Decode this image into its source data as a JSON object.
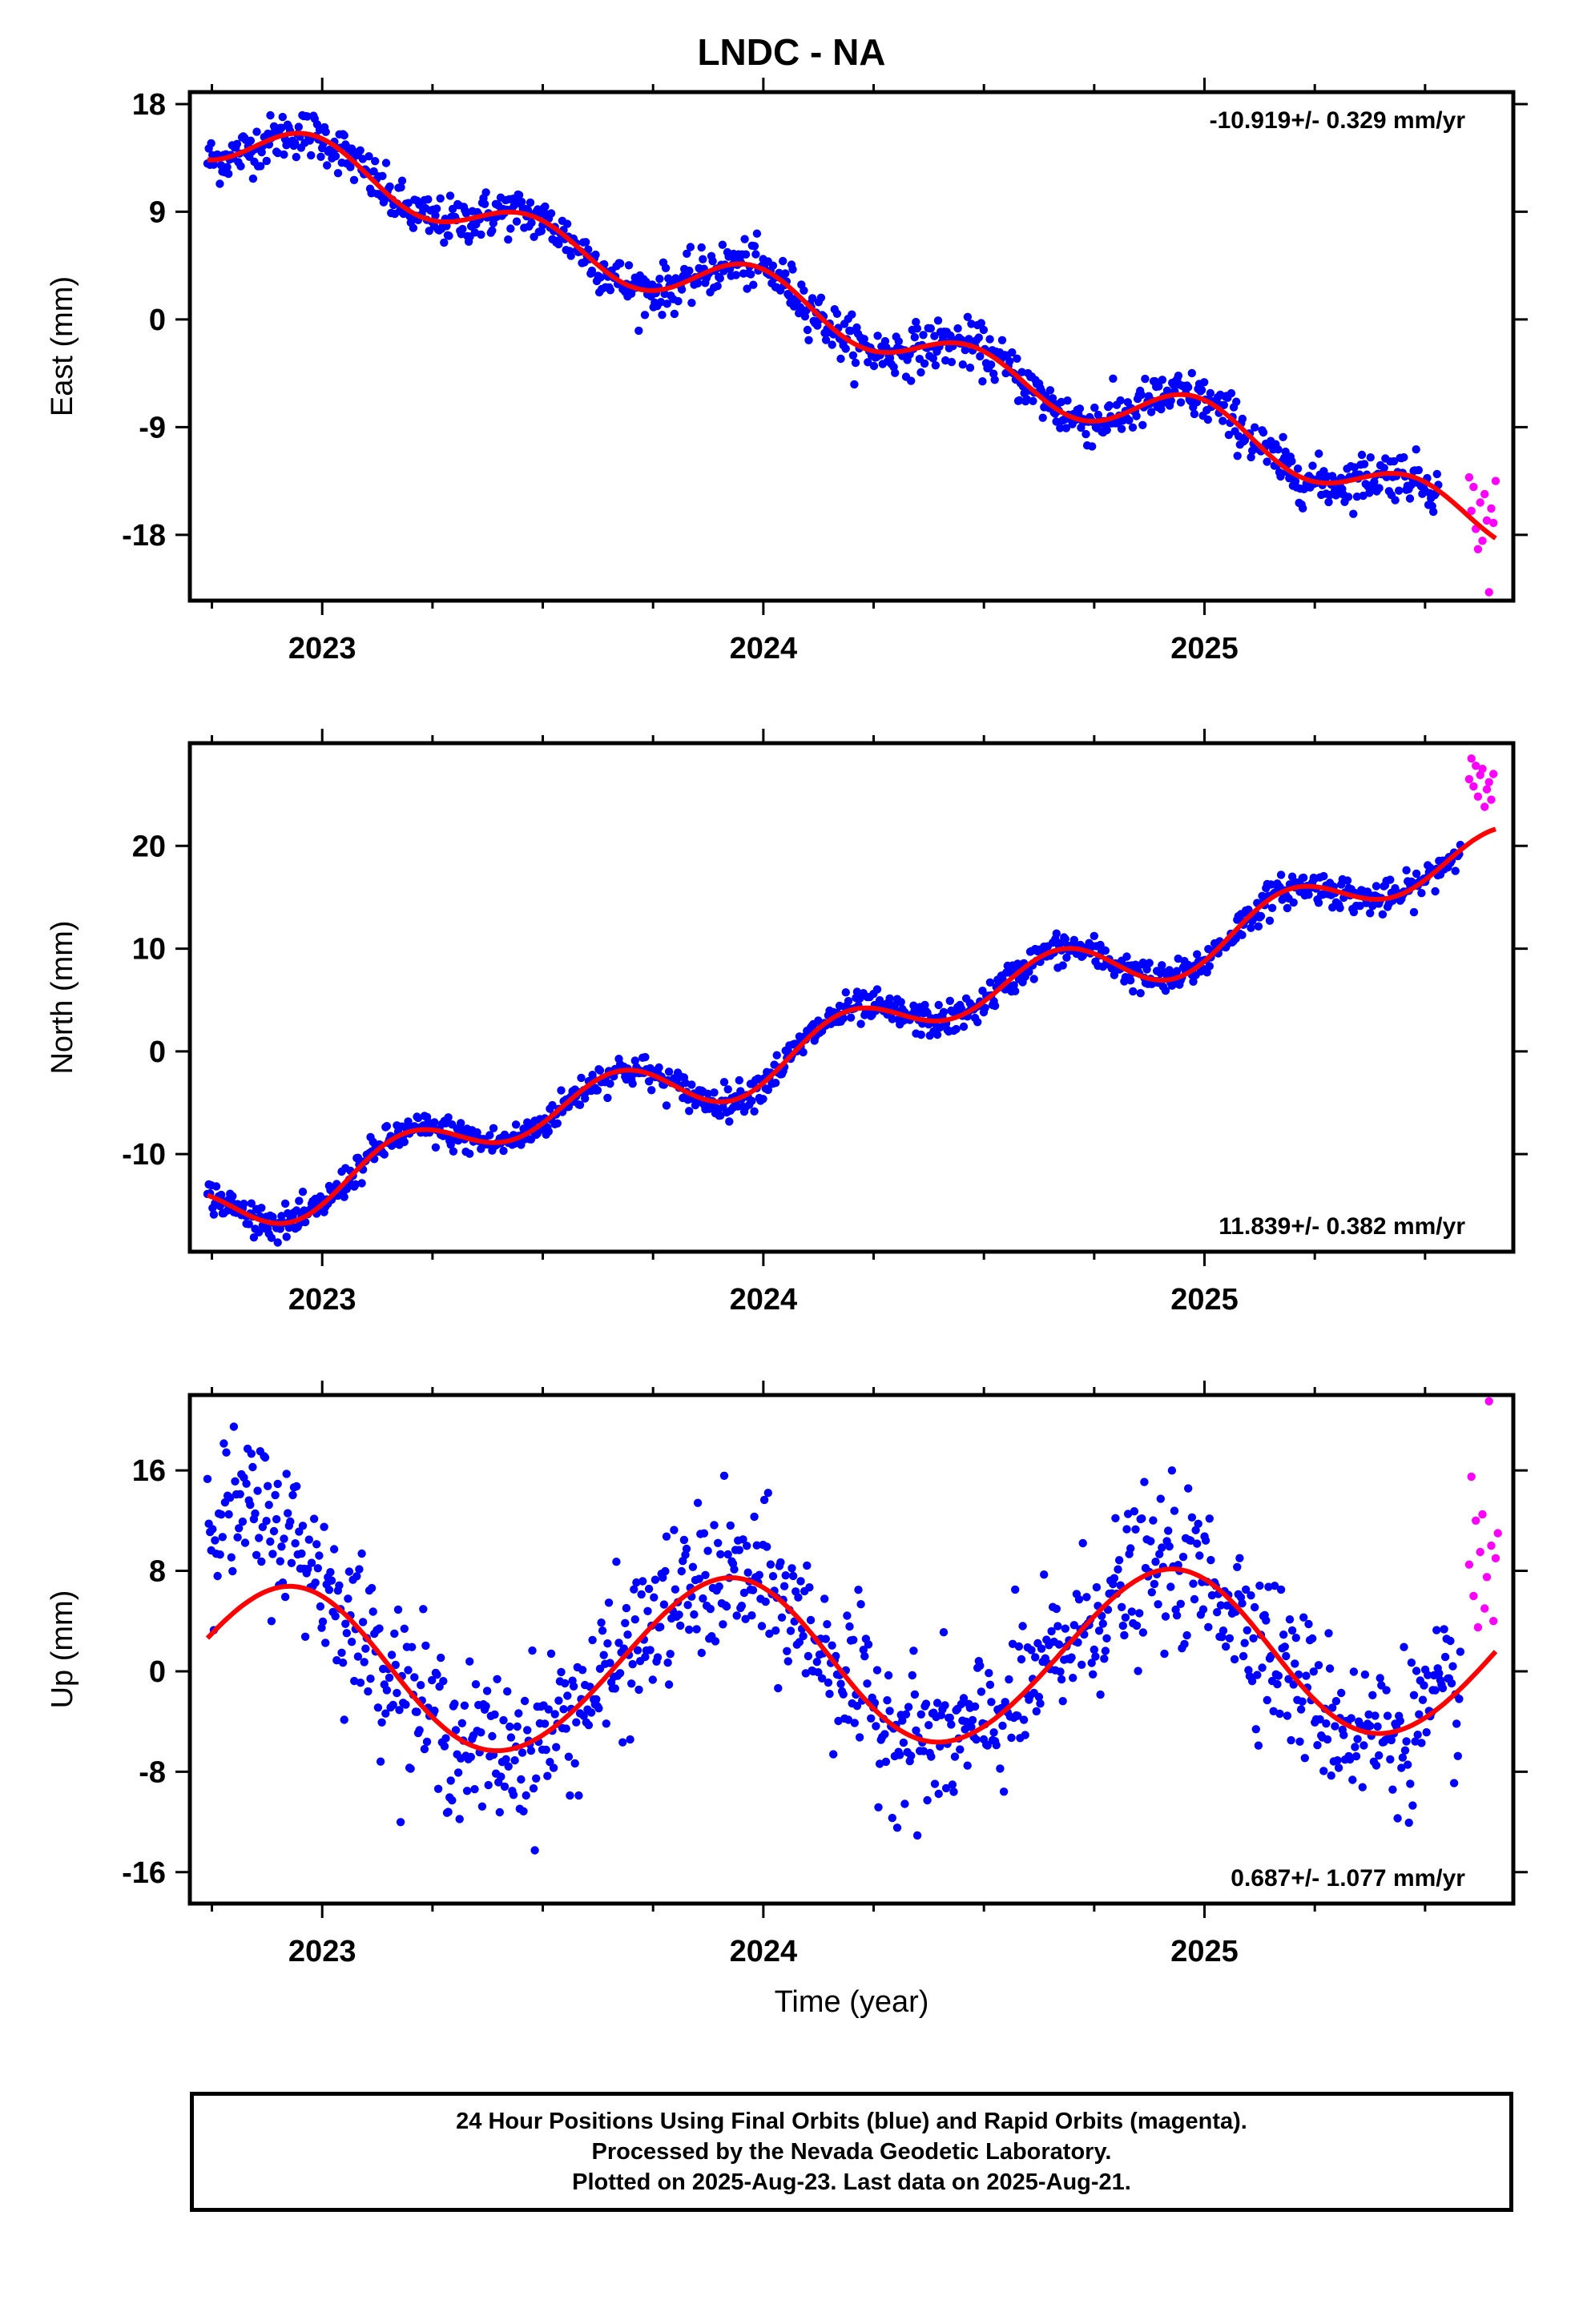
{
  "title": "LNDC - NA",
  "colors": {
    "final": "#0000ff",
    "rapid": "#ff00ff",
    "fit": "#ff0000",
    "frame": "#000000"
  },
  "chart_data": [
    {
      "type": "scatter",
      "ylabel": "East (mm)",
      "xlim": [
        2022.7,
        2025.7
      ],
      "ylim": [
        -23.5,
        19
      ],
      "yticks": [
        18,
        9,
        0,
        -9,
        -18
      ],
      "xticks": [
        2023,
        2024,
        2025
      ],
      "xtick_labels": [
        "2023",
        "2024",
        "2025"
      ],
      "rate_text": "-10.919+/- 0.329 mm/yr",
      "rate_position": "top-right",
      "fit": {
        "t0": 2024.2,
        "offset": -0.5,
        "rate": -10.919,
        "annual_sin": 0.2,
        "annual_cos": 0.7,
        "semi_sin": -0.6,
        "semi_cos": 1.8
      },
      "final_noise": 1.0,
      "final_range": [
        2022.74,
        2025.53
      ],
      "rapid_points": [
        [
          2025.6,
          -13.2
        ],
        [
          2025.605,
          -16.0
        ],
        [
          2025.61,
          -14.0
        ],
        [
          2025.615,
          -17.5
        ],
        [
          2025.62,
          -19.2
        ],
        [
          2025.625,
          -15.3
        ],
        [
          2025.63,
          -18.5
        ],
        [
          2025.635,
          -14.6
        ],
        [
          2025.64,
          -16.8
        ],
        [
          2025.645,
          -22.8
        ],
        [
          2025.65,
          -15.8
        ],
        [
          2025.655,
          -17.0
        ],
        [
          2025.66,
          -13.5
        ]
      ]
    },
    {
      "type": "scatter",
      "ylabel": "North (mm)",
      "xlim": [
        2022.7,
        2025.7
      ],
      "ylim": [
        -19.5,
        30
      ],
      "yticks": [
        20,
        10,
        0,
        -10
      ],
      "xticks": [
        2023,
        2024,
        2025
      ],
      "xtick_labels": [
        "2023",
        "2024",
        "2025"
      ],
      "rate_text": "11.839+/- 0.382 mm/yr",
      "rate_position": "bottom-right",
      "fit": {
        "t0": 2024.2,
        "offset": 1.8,
        "rate": 11.839,
        "annual_sin": 0.3,
        "annual_cos": -1.0,
        "semi_sin": 1.8,
        "semi_cos": -1.5
      },
      "final_noise": 0.8,
      "final_range": [
        2022.74,
        2025.58
      ],
      "rapid_points": [
        [
          2025.6,
          26.5
        ],
        [
          2025.605,
          28.5
        ],
        [
          2025.61,
          25.8
        ],
        [
          2025.615,
          27.8
        ],
        [
          2025.62,
          24.8
        ],
        [
          2025.625,
          26.9
        ],
        [
          2025.63,
          27.5
        ],
        [
          2025.635,
          23.8
        ],
        [
          2025.64,
          25.5
        ],
        [
          2025.645,
          26.2
        ],
        [
          2025.65,
          24.5
        ],
        [
          2025.655,
          27.0
        ]
      ]
    },
    {
      "type": "scatter",
      "ylabel": "Up (mm)",
      "xlabel": "Time (year)",
      "xlim": [
        2022.7,
        2025.7
      ],
      "ylim": [
        -18.5,
        22
      ],
      "yticks": [
        16,
        8,
        0,
        -8,
        -16
      ],
      "xticks": [
        2023,
        2024,
        2025
      ],
      "xtick_labels": [
        "2023",
        "2024",
        "2025"
      ],
      "rate_text": "0.687+/- 1.077 mm/yr",
      "rate_position": "bottom-right",
      "fit": {
        "t0": 2024.2,
        "offset": 0.8,
        "rate": 0.687,
        "annual_sin": -3.5,
        "annual_cos": 5.7,
        "semi_sin": 0.0,
        "semi_cos": 0.3
      },
      "final_noise": 3.0,
      "final_range": [
        2022.74,
        2025.58
      ],
      "early_offset": [
        2022.74,
        2023.05,
        10.0
      ],
      "rapid_points": [
        [
          2025.6,
          8.5
        ],
        [
          2025.605,
          15.5
        ],
        [
          2025.61,
          6.0
        ],
        [
          2025.615,
          12.0
        ],
        [
          2025.62,
          3.5
        ],
        [
          2025.625,
          9.5
        ],
        [
          2025.63,
          12.5
        ],
        [
          2025.635,
          5.0
        ],
        [
          2025.64,
          7.5
        ],
        [
          2025.645,
          21.5
        ],
        [
          2025.65,
          10.0
        ],
        [
          2025.655,
          4.0
        ],
        [
          2025.66,
          9.0
        ],
        [
          2025.665,
          11.0
        ]
      ]
    }
  ],
  "footer": {
    "line1": "24 Hour Positions Using Final Orbits (blue) and Rapid Orbits (magenta).",
    "line2": "Processed by the Nevada Geodetic Laboratory.",
    "line3": "Plotted on 2025-Aug-23. Last data on 2025-Aug-21."
  }
}
